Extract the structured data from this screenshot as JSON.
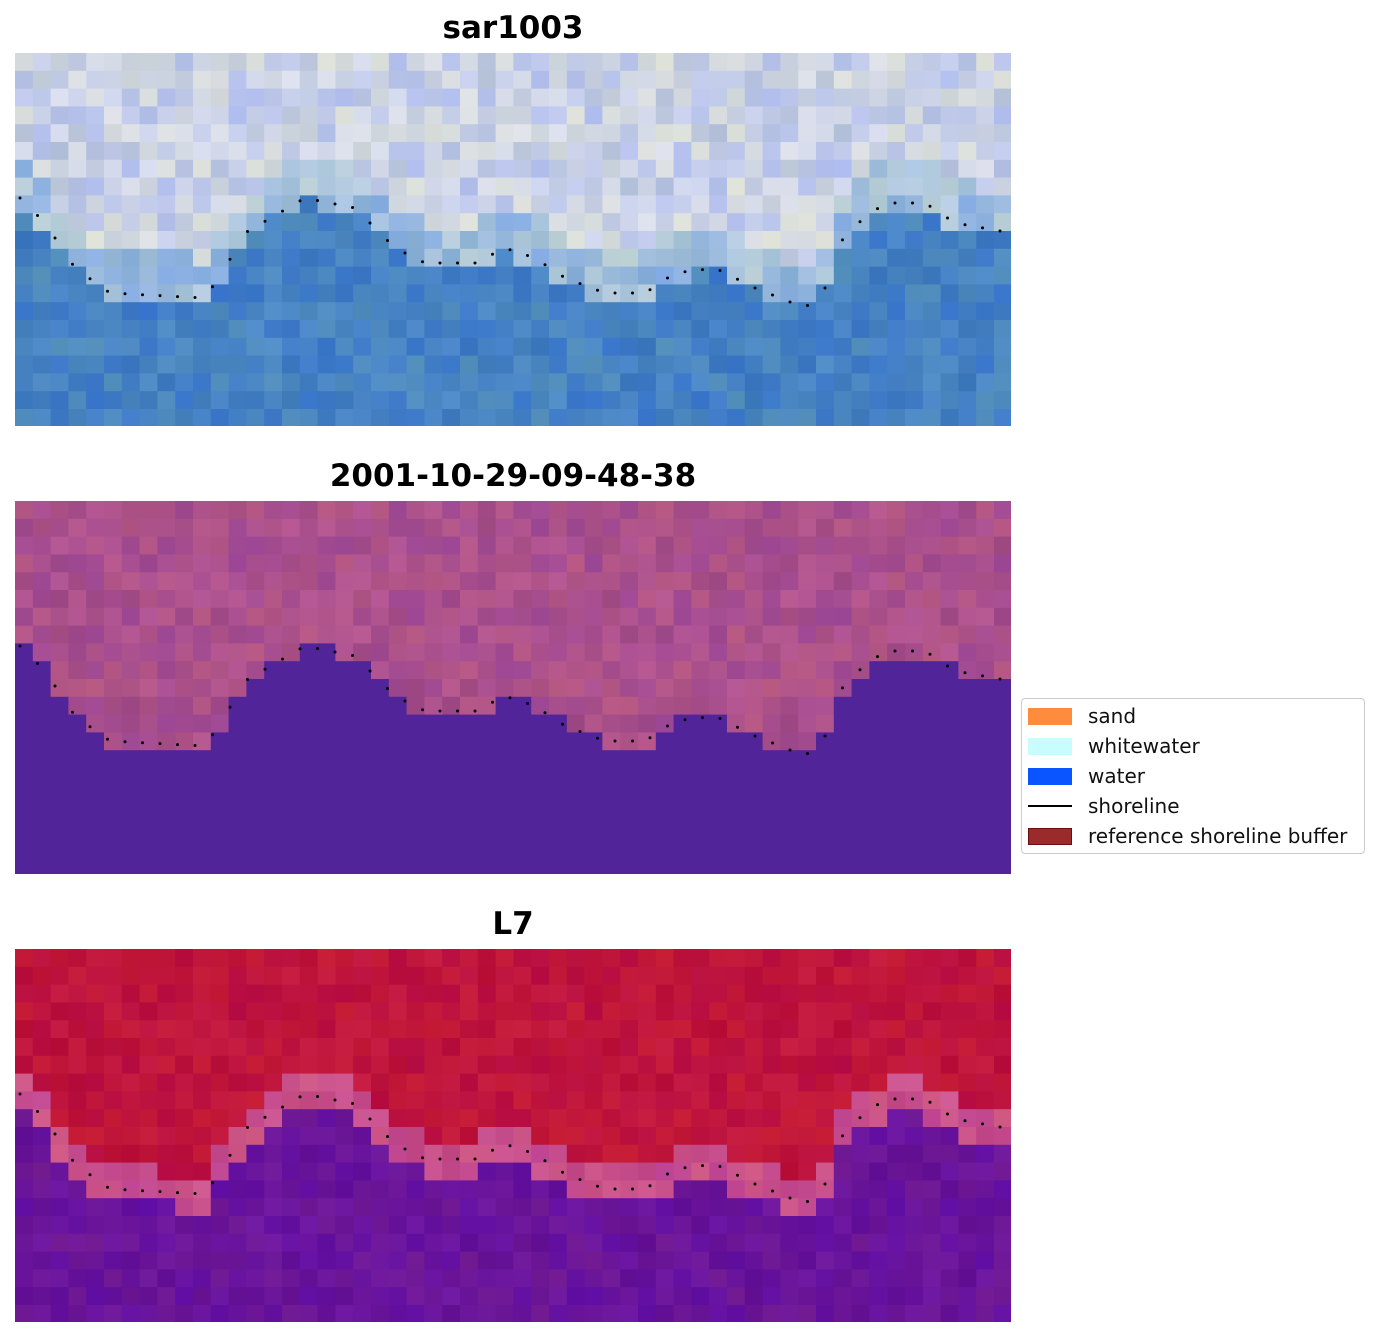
{
  "panels": [
    {
      "title": "sar1003",
      "palette": "rgb"
    },
    {
      "title": "2001-10-29-09-48-38",
      "palette": "classified"
    },
    {
      "title": "L7",
      "palette": "index"
    }
  ],
  "legend": {
    "items": [
      {
        "label": "sand",
        "kind": "patch",
        "color": "#ff8c3c"
      },
      {
        "label": "whitewater",
        "kind": "patch",
        "color": "#c8fdfd"
      },
      {
        "label": "water",
        "kind": "patch",
        "color": "#0a55ff"
      },
      {
        "label": "shoreline",
        "kind": "line",
        "color": "#000000"
      },
      {
        "label": "reference shoreline buffer",
        "kind": "patch",
        "color": "#9b2a2a"
      }
    ]
  },
  "colors": {
    "shoreline_dots": "#000000",
    "classified_water": "#52249a",
    "classified_land": "#a85088",
    "index_land": "#c0143a",
    "index_water": "#6a12a0"
  }
}
